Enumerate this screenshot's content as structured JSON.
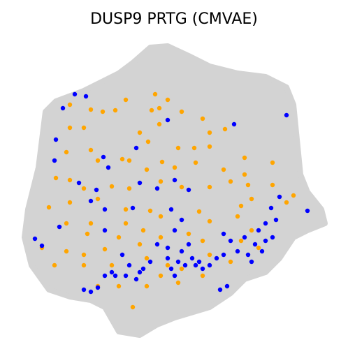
{
  "chart_data": {
    "type": "scatter",
    "title": "DUSP9 PRTG (CMVAE)",
    "xlim": [
      30,
      470
    ],
    "ylim": [
      490,
      60
    ],
    "series": [
      {
        "color": "#ffa500",
        "x": [
          222,
          240,
          130,
          147,
          165,
          180,
          217,
          228,
          100,
          120,
          100,
          260,
          290,
          322,
          300,
          228,
          200,
          212,
          255,
          278,
          300,
          95,
          130,
          175,
          185,
          140,
          210,
          232,
          250,
          320,
          280,
          350,
          390,
          100,
          80,
          120,
          160,
          185,
          230,
          260,
          300,
          330,
          355,
          390,
          70,
          100,
          140,
          180,
          215,
          230,
          205,
          180,
          125,
          130,
          95,
          285,
          300,
          345,
          360,
          290,
          270,
          230,
          200,
          170,
          150,
          120,
          95,
          78,
          120,
          160,
          210,
          240,
          260,
          300,
          330,
          345,
          230,
          210,
          170,
          140,
          190,
          255,
          290,
          370,
          360,
          340,
          60,
          350,
          420,
          410
        ],
        "values": [
          135,
          143,
          157,
          160,
          158,
          143,
          158,
          155,
          183,
          183,
          150,
          160,
          170,
          185,
          190,
          178,
          190,
          203,
          212,
          212,
          210,
          218,
          215,
          228,
          230,
          230,
          243,
          232,
          240,
          243,
          233,
          226,
          233,
          258,
          255,
          270,
          267,
          270,
          260,
          268,
          268,
          260,
          265,
          265,
          297,
          290,
          285,
          300,
          302,
          310,
          330,
          320,
          335,
          320,
          320,
          303,
          317,
          295,
          285,
          345,
          335,
          340,
          350,
          340,
          357,
          365,
          360,
          380,
          380,
          380,
          370,
          380,
          385,
          365,
          375,
          345,
          395,
          410,
          410,
          410,
          440,
          405,
          395,
          355,
          330,
          310,
          355,
          250,
          280,
          290
        ]
      },
      {
        "color": "#0000ff",
        "x": [
          107,
          123,
          90,
          240,
          335,
          410,
          80,
          78,
          195,
          148,
          155,
          113,
          138,
          130,
          250,
          270,
          225,
          200,
          190,
          245,
          260,
          250,
          270,
          320,
          330,
          350,
          370,
          380,
          395,
          388,
          400,
          440,
          50,
          60,
          85,
          150,
          175,
          185,
          200,
          215,
          240,
          255,
          265,
          275,
          285,
          300,
          310,
          320,
          340,
          355,
          365,
          380,
          240,
          225,
          160,
          150,
          120,
          130,
          140,
          165,
          180,
          195,
          205,
          245,
          250,
          260,
          280,
          290,
          315,
          325,
          390,
          375,
          360,
          150
        ],
        "values": [
          135,
          138,
          155,
          172,
          178,
          165,
          200,
          230,
          212,
          225,
          240,
          262,
          272,
          288,
          258,
          272,
          270,
          262,
          298,
          300,
          315,
          330,
          350,
          335,
          345,
          340,
          330,
          320,
          315,
          298,
          282,
          302,
          342,
          352,
          325,
          330,
          365,
          380,
          390,
          375,
          370,
          375,
          380,
          370,
          375,
          380,
          370,
          365,
          360,
          365,
          350,
          345,
          355,
          350,
          390,
          395,
          415,
          418,
          412,
          395,
          395,
          400,
          385,
          385,
          395,
          360,
          380,
          385,
          415,
          410,
          340,
          360,
          375,
          300
        ]
      }
    ]
  }
}
